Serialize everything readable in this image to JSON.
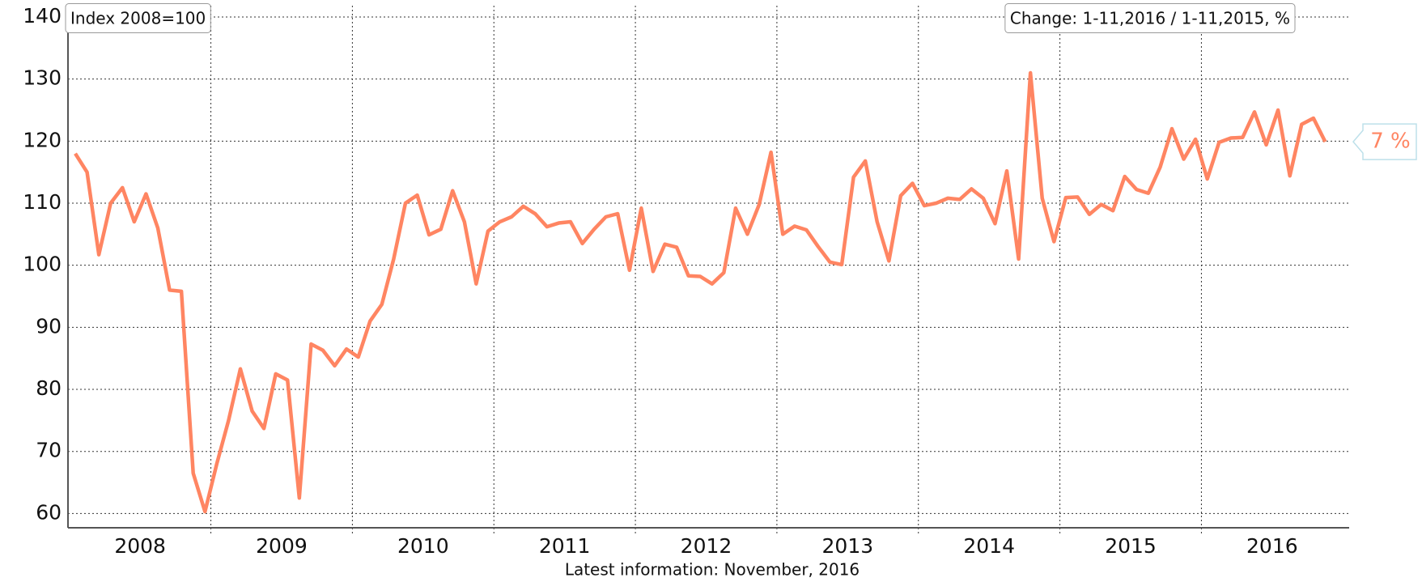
{
  "chart_data": {
    "type": "line",
    "annotation_left": "Index 2008=100",
    "annotation_right": "Change: 1-11,2016 / 1-11,2015, %",
    "footer": "Latest information: November, 2016",
    "end_value": 7,
    "end_value_label": "7 %",
    "year_labels": [
      "2008",
      "2009",
      "2010",
      "2011",
      "2012",
      "2013",
      "2014",
      "2015",
      "2016"
    ],
    "series": [
      {
        "name": "Index",
        "color": "#ff8562",
        "values": [
          118,
          115,
          101.7,
          110,
          112.5,
          107,
          111.5,
          106,
          96,
          95.8,
          66.5,
          60.3,
          68,
          75,
          83.3,
          76.5,
          73.7,
          82.5,
          81.5,
          62.5,
          87.3,
          86.3,
          83.8,
          86.5,
          85.2,
          91,
          93.7,
          101,
          110,
          111.3,
          104.9,
          105.8,
          112,
          107,
          97,
          105.5,
          107,
          107.8,
          109.5,
          108.3,
          106.2,
          106.8,
          107,
          103.5,
          105.8,
          107.8,
          108.3,
          99.2,
          109.2,
          99,
          103.4,
          102.9,
          98.3,
          98.2,
          97,
          98.8,
          109.2,
          105,
          109.8,
          118.2,
          105,
          106.3,
          105.7,
          103,
          100.5,
          100.1,
          114.2,
          116.8,
          107,
          100.7,
          111.2,
          113.2,
          109.6,
          110,
          110.8,
          110.6,
          112.3,
          110.8,
          106.7,
          115.2,
          101,
          131,
          110.8,
          103.8,
          110.9,
          111,
          108.2,
          109.8,
          108.8,
          114.3,
          112.2,
          111.6,
          115.8,
          122,
          117.1,
          120.3,
          113.9,
          119.8,
          120.5,
          120.6,
          124.7,
          119.4,
          125,
          114.4,
          122.7,
          123.7,
          119.9
        ]
      }
    ],
    "ylim": [
      57.7,
      140
    ],
    "yticks": [
      60,
      70,
      80,
      90,
      100,
      110,
      120,
      130,
      140
    ],
    "grid": true
  }
}
